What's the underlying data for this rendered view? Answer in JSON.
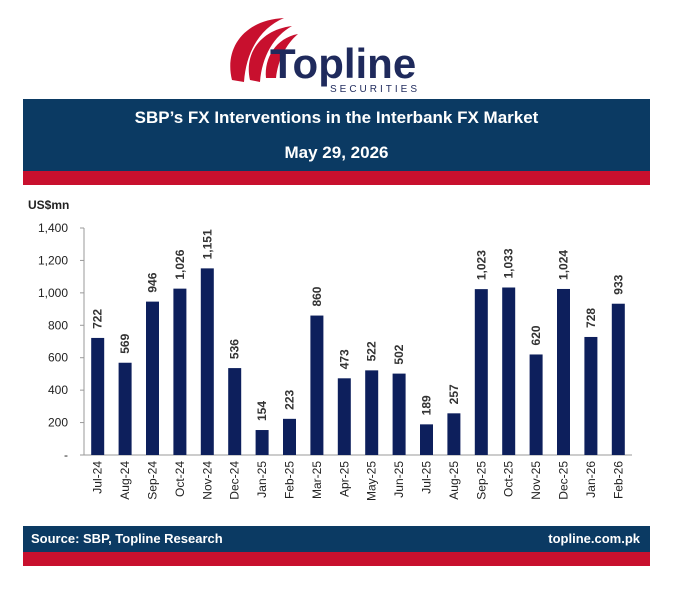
{
  "brand": {
    "name": "Topline",
    "tagline": "SECURITIES",
    "navy": "#1f2a5c",
    "red": "#c8102e"
  },
  "header": {
    "title": "SBP’s FX Interventions in the Interbank FX Market",
    "date": "May 29, 2026"
  },
  "footer": {
    "source": "Source: SBP, Topline Research",
    "website": "topline.com.pk"
  },
  "chart_data": {
    "type": "bar",
    "ylabel": "US$mn",
    "ylim": [
      0,
      1400
    ],
    "yticks": [
      0,
      200,
      400,
      600,
      800,
      1000,
      1200,
      1400
    ],
    "ytick_labels": [
      "-",
      "200",
      "400",
      "600",
      "800",
      "1,000",
      "1,200",
      "1,400"
    ],
    "grid": false,
    "bar_color": "#0d1f5c",
    "categories": [
      "Jul-24",
      "Aug-24",
      "Sep-24",
      "Oct-24",
      "Nov-24",
      "Dec-24",
      "Jan-25",
      "Feb-25",
      "Mar-25",
      "Apr-25",
      "May-25",
      "Jun-25",
      "Jul-25",
      "Aug-25",
      "Sep-25",
      "Oct-25",
      "Nov-25",
      "Dec-25",
      "Jan-26",
      "Feb-26"
    ],
    "values": [
      722,
      569,
      946,
      1026,
      1151,
      536,
      154,
      223,
      860,
      473,
      522,
      502,
      189,
      257,
      1023,
      1033,
      620,
      1024,
      728,
      933
    ],
    "value_labels": [
      "722",
      "569",
      "946",
      "1,026",
      "1,151",
      "536",
      "154",
      "223",
      "860",
      "473",
      "522",
      "502",
      "189",
      "257",
      "1,023",
      "1,033",
      "620",
      "1,024",
      "728",
      "933"
    ]
  }
}
